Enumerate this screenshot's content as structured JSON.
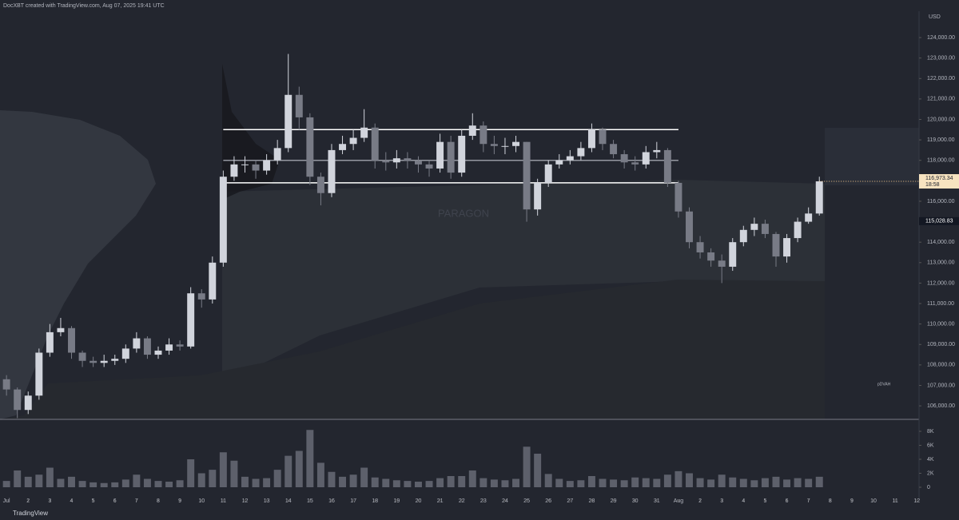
{
  "chart_data": {
    "type": "candlestick",
    "header": "DocXBT created with TradingView.com, Aug 07, 2025 19:41 UTC",
    "source": "TradingView",
    "currency": "USD",
    "watermark": "PARAGON",
    "annotation": "pDVAH",
    "up_color": "#d1d4dc",
    "down_color": "#787b86",
    "x": [
      0,
      0.5,
      1,
      1.5,
      2,
      2.5,
      3,
      3.5,
      4,
      4.5,
      5,
      5.5,
      6,
      6.5,
      7,
      7.5,
      8,
      8.5,
      9,
      9.5,
      10,
      10.5,
      11,
      11.5,
      12,
      12.5,
      13,
      13.5,
      14,
      14.5,
      15,
      15.5,
      16,
      16.5,
      17,
      17.5,
      18,
      18.5,
      19,
      19.5,
      20,
      20.5,
      21,
      21.5,
      22,
      22.5,
      23,
      23.5,
      24,
      24.5,
      25,
      25.5,
      26,
      26.5,
      27,
      27.5,
      28,
      28.5,
      29,
      29.5,
      30,
      30.5,
      31,
      31.5,
      32,
      32.5,
      33,
      33.5,
      34,
      34.5,
      35,
      35.5,
      36,
      36.5,
      37,
      37.5
    ],
    "open": [
      107300,
      106800,
      105800,
      106500,
      108600,
      109600,
      109800,
      108600,
      108200,
      108100,
      108200,
      108300,
      108800,
      109300,
      108500,
      108700,
      109000,
      108900,
      111500,
      111200,
      113000,
      117200,
      117800,
      117800,
      117500,
      118000,
      118600,
      121200,
      120100,
      117200,
      116400,
      118500,
      118800,
      119100,
      119600,
      118000,
      117900,
      118100,
      118000,
      117800,
      117600,
      118900,
      117400,
      119200,
      119700,
      118800,
      118700,
      118700,
      118900,
      115600,
      116900,
      117800,
      118000,
      118200,
      118600,
      119500,
      118800,
      118300,
      117900,
      117800,
      118400,
      118500,
      116900,
      115500,
      114000,
      113500,
      113100,
      112800,
      114000,
      114600,
      114900,
      114400,
      113300,
      114200,
      115000,
      115400
    ],
    "high": [
      107500,
      106900,
      106700,
      108800,
      110000,
      110300,
      109900,
      108700,
      108400,
      108500,
      108500,
      109000,
      109600,
      109400,
      108900,
      109300,
      109200,
      111800,
      111700,
      113300,
      117500,
      118200,
      118200,
      118000,
      118300,
      119000,
      123200,
      121600,
      120300,
      117400,
      118800,
      119200,
      119500,
      120500,
      119800,
      118400,
      118500,
      118400,
      118200,
      118000,
      119300,
      119200,
      119500,
      120300,
      119900,
      119200,
      119100,
      119200,
      118900,
      117100,
      118000,
      118300,
      118500,
      118900,
      119800,
      119600,
      119000,
      118500,
      118200,
      118700,
      118900,
      118600,
      117000,
      115700,
      114300,
      113700,
      113400,
      114200,
      114800,
      115200,
      115100,
      114500,
      114400,
      115200,
      115700,
      117200
    ],
    "low": [
      106500,
      105400,
      105600,
      106300,
      108400,
      109400,
      108300,
      107900,
      107900,
      107900,
      108000,
      108100,
      108600,
      108300,
      108300,
      108500,
      108700,
      108800,
      110800,
      111000,
      112800,
      117000,
      117400,
      117100,
      117300,
      117800,
      118400,
      119500,
      116800,
      115800,
      116200,
      118300,
      118500,
      118900,
      117600,
      117500,
      117600,
      117600,
      117400,
      117200,
      117400,
      117100,
      117200,
      119000,
      118400,
      118300,
      118300,
      118400,
      115000,
      115300,
      116700,
      117600,
      117800,
      118000,
      118400,
      118500,
      118100,
      117600,
      117500,
      117600,
      118100,
      116700,
      115200,
      113700,
      113200,
      112800,
      112000,
      112600,
      113800,
      114300,
      114200,
      112800,
      113000,
      114000,
      114900,
      115300
    ],
    "close": [
      106800,
      105800,
      106500,
      108600,
      109600,
      109800,
      108600,
      108200,
      108100,
      108200,
      108300,
      108800,
      109300,
      108500,
      108700,
      109000,
      108900,
      111500,
      111200,
      113000,
      117200,
      117800,
      117800,
      117500,
      118000,
      118600,
      121200,
      120100,
      117200,
      116400,
      118500,
      118800,
      119100,
      119600,
      118000,
      117900,
      118100,
      118000,
      117800,
      117600,
      118900,
      117400,
      119200,
      119700,
      118800,
      118700,
      118700,
      118900,
      115600,
      116900,
      117800,
      118000,
      118200,
      118600,
      119500,
      118800,
      118300,
      117900,
      117800,
      118400,
      118500,
      116900,
      115500,
      114000,
      113500,
      113100,
      112800,
      114000,
      114600,
      114900,
      114400,
      113300,
      114200,
      115000,
      115400,
      116973
    ],
    "xlim": [
      -0.3,
      42.1
    ],
    "xticks": [
      {
        "value": 0,
        "label": "Jul"
      },
      {
        "value": 1,
        "label": "2"
      },
      {
        "value": 2,
        "label": "3"
      },
      {
        "value": 3,
        "label": "4"
      },
      {
        "value": 4,
        "label": "5"
      },
      {
        "value": 5,
        "label": "6"
      },
      {
        "value": 6,
        "label": "7"
      },
      {
        "value": 7,
        "label": "8"
      },
      {
        "value": 8,
        "label": "9"
      },
      {
        "value": 9,
        "label": "10"
      },
      {
        "value": 10,
        "label": "11"
      },
      {
        "value": 11,
        "label": "12"
      },
      {
        "value": 12,
        "label": "13"
      },
      {
        "value": 13,
        "label": "14"
      },
      {
        "value": 14,
        "label": "15"
      },
      {
        "value": 15,
        "label": "16"
      },
      {
        "value": 16,
        "label": "17"
      },
      {
        "value": 17,
        "label": "18"
      },
      {
        "value": 18,
        "label": "19"
      },
      {
        "value": 19,
        "label": "20"
      },
      {
        "value": 20,
        "label": "21"
      },
      {
        "value": 21,
        "label": "22"
      },
      {
        "value": 22,
        "label": "23"
      },
      {
        "value": 23,
        "label": "24"
      },
      {
        "value": 24,
        "label": "25"
      },
      {
        "value": 25,
        "label": "26"
      },
      {
        "value": 26,
        "label": "27"
      },
      {
        "value": 27,
        "label": "28"
      },
      {
        "value": 28,
        "label": "29"
      },
      {
        "value": 29,
        "label": "30"
      },
      {
        "value": 30,
        "label": "31"
      },
      {
        "value": 31,
        "label": "Aug"
      },
      {
        "value": 32,
        "label": "2"
      },
      {
        "value": 33,
        "label": "3"
      },
      {
        "value": 34,
        "label": "4"
      },
      {
        "value": 35,
        "label": "5"
      },
      {
        "value": 36,
        "label": "6"
      },
      {
        "value": 37,
        "label": "7"
      },
      {
        "value": 38,
        "label": "8"
      },
      {
        "value": 39,
        "label": "9"
      },
      {
        "value": 40,
        "label": "10"
      },
      {
        "value": 41,
        "label": "11"
      },
      {
        "value": 42,
        "label": "12"
      }
    ],
    "ylim": [
      105340,
      125290
    ],
    "yticks": [
      {
        "value": 106000,
        "label": "106,000.00"
      },
      {
        "value": 107000,
        "label": "107,000.00"
      },
      {
        "value": 108000,
        "label": "108,000.00"
      },
      {
        "value": 109000,
        "label": "109,000.00"
      },
      {
        "value": 110000,
        "label": "110,000.00"
      },
      {
        "value": 111000,
        "label": "111,000.00"
      },
      {
        "value": 112000,
        "label": "112,000.00"
      },
      {
        "value": 113000,
        "label": "113,000.00"
      },
      {
        "value": 114000,
        "label": "114,000.00"
      },
      {
        "value": 115000,
        "label": "115,000.00"
      },
      {
        "value": 116000,
        "label": "116,000.00"
      },
      {
        "value": 117000,
        "label": "117,000.00"
      },
      {
        "value": 118000,
        "label": "118,000.00"
      },
      {
        "value": 119000,
        "label": "119,000.00"
      },
      {
        "value": 120000,
        "label": "120,000.00"
      },
      {
        "value": 121000,
        "label": "121,000.00"
      },
      {
        "value": 122000,
        "label": "122,000.00"
      },
      {
        "value": 123000,
        "label": "123,000.00"
      },
      {
        "value": 124000,
        "label": "124,000.00"
      }
    ],
    "levels": [
      {
        "value": 119500,
        "from": 10,
        "to": 31,
        "color": "#ffffff"
      },
      {
        "value": 118000,
        "from": 10,
        "to": 31,
        "color": "#9598a1"
      },
      {
        "value": 116900,
        "from": 10,
        "to": 31,
        "color": "#ffffff"
      }
    ],
    "last_price": 116973.34,
    "last_price_label": "116,973.34",
    "countdown": "18:58",
    "marker_price": 115028.83,
    "marker_label": "115,028.83",
    "volume": {
      "color": "#5d606b",
      "values": [
        900,
        2400,
        1500,
        1800,
        2800,
        1200,
        1500,
        900,
        700,
        600,
        700,
        1100,
        1800,
        1200,
        900,
        800,
        1000,
        4000,
        2000,
        2500,
        5000,
        3800,
        1500,
        1200,
        1300,
        2500,
        4500,
        5200,
        8200,
        3500,
        2200,
        1500,
        1800,
        2800,
        1400,
        1200,
        1000,
        900,
        800,
        900,
        1300,
        1600,
        1600,
        2400,
        1300,
        1100,
        1000,
        1200,
        5800,
        4800,
        1900,
        1200,
        900,
        1000,
        1600,
        1200,
        1100,
        1000,
        1400,
        1300,
        1200,
        1800,
        2300,
        2000,
        1300,
        1100,
        1800,
        1400,
        1200,
        1000,
        1300,
        1500,
        1100,
        1300,
        1200,
        1500
      ],
      "ylim": [
        0,
        9140
      ],
      "yticks": [
        0,
        {
          "value": 2000,
          "label": "2K"
        },
        {
          "value": 4000,
          "label": "4K"
        },
        {
          "value": 6000,
          "label": "6K"
        },
        {
          "value": 8000,
          "label": "8K"
        }
      ]
    }
  }
}
